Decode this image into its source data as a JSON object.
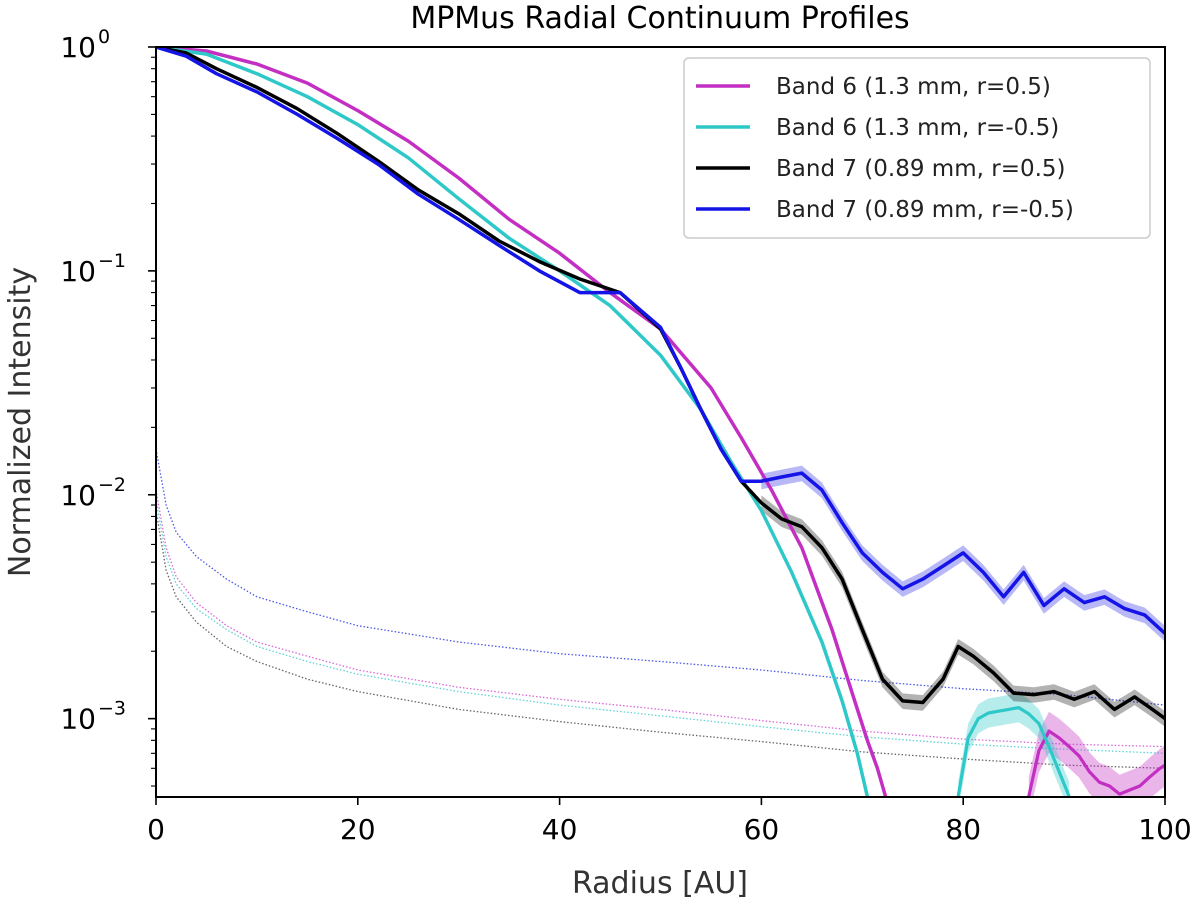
{
  "chart_data": {
    "type": "line",
    "title": "MPMus Radial Continuum Profiles",
    "xlabel": "Radius [AU]",
    "ylabel": "Normalized Intensity",
    "xlim": [
      0,
      100
    ],
    "ylim_log10": [
      -3.35,
      0
    ],
    "yscale": "log",
    "x_ticks": [
      0,
      20,
      40,
      60,
      80,
      100
    ],
    "y_ticks": [
      {
        "exp": 0,
        "base": "10",
        "sup": "0"
      },
      {
        "exp": -1,
        "base": "10",
        "sup": "−1"
      },
      {
        "exp": -2,
        "base": "10",
        "sup": "−2"
      },
      {
        "exp": -3,
        "base": "10",
        "sup": "−3"
      }
    ],
    "legend_position": "top-right",
    "series": [
      {
        "name": "Band 6 (1.3 mm, r=0.5)",
        "color": "#c22fc2",
        "x": [
          0,
          5,
          10,
          15,
          20,
          25,
          30,
          35,
          40,
          45,
          50,
          55,
          58,
          61,
          64,
          67,
          69,
          70.5,
          71.5,
          72.3
        ],
        "y": [
          1.0,
          0.96,
          0.84,
          0.69,
          0.52,
          0.38,
          0.26,
          0.17,
          0.12,
          0.08,
          0.055,
          0.03,
          0.018,
          0.0105,
          0.0058,
          0.0025,
          0.0013,
          0.0008,
          0.0006,
          0.00045
        ],
        "x2": [
          86.5,
          87.5,
          88.5,
          89.5,
          90.5,
          91.5,
          92.5,
          93.5,
          94.5,
          95.5,
          96.5,
          97.5,
          98.5,
          99.5,
          100
        ],
        "y2": [
          0.00045,
          0.00072,
          0.00088,
          0.00082,
          0.00075,
          0.00068,
          0.00058,
          0.00052,
          0.0005,
          0.00046,
          0.00048,
          0.0005,
          0.00055,
          0.0006,
          0.00062
        ]
      },
      {
        "name": "Band 6 (1.3 mm, r=-0.5)",
        "color": "#2ec8c8",
        "x": [
          0,
          5,
          10,
          15,
          20,
          25,
          30,
          35,
          40,
          45,
          50,
          54,
          57,
          60,
          63,
          66,
          68,
          69.5,
          70.5
        ],
        "y": [
          1.0,
          0.93,
          0.76,
          0.6,
          0.45,
          0.32,
          0.21,
          0.14,
          0.1,
          0.07,
          0.042,
          0.024,
          0.014,
          0.0085,
          0.0045,
          0.0022,
          0.0012,
          0.0007,
          0.00045
        ],
        "x2": [
          79.5,
          80.5,
          81.5,
          82.5,
          83.5,
          84.5,
          85.5,
          86.5,
          87.5,
          88.5,
          89.5,
          90.5
        ],
        "y2": [
          0.00045,
          0.00082,
          0.001,
          0.00106,
          0.00108,
          0.0011,
          0.00112,
          0.00105,
          0.00095,
          0.00075,
          0.00058,
          0.00045
        ]
      },
      {
        "name": "Band 7 (0.89 mm, r=0.5)",
        "color": "#000000",
        "x": [
          0,
          3,
          6,
          10,
          14,
          18,
          22,
          26,
          30,
          34,
          38,
          42,
          46,
          50,
          52,
          54,
          56,
          58,
          60,
          62,
          64,
          66,
          68,
          70,
          72,
          74,
          76,
          78,
          79.5,
          81,
          83,
          85,
          87,
          89,
          91,
          93,
          95,
          97,
          99,
          100
        ],
        "y": [
          1.0,
          0.94,
          0.8,
          0.66,
          0.53,
          0.41,
          0.31,
          0.23,
          0.18,
          0.136,
          0.11,
          0.092,
          0.08,
          0.055,
          0.037,
          0.024,
          0.016,
          0.0115,
          0.0092,
          0.0078,
          0.0072,
          0.0058,
          0.0042,
          0.0025,
          0.0015,
          0.0012,
          0.00118,
          0.0015,
          0.0021,
          0.0019,
          0.0016,
          0.0013,
          0.00128,
          0.00132,
          0.00122,
          0.00132,
          0.0011,
          0.00125,
          0.00108,
          0.001
        ]
      },
      {
        "name": "Band 7 (0.89 mm, r=-0.5)",
        "color": "#1414e6",
        "x": [
          0,
          3,
          6,
          10,
          14,
          18,
          22,
          26,
          30,
          34,
          38,
          42,
          46,
          50,
          52,
          54,
          56,
          58,
          60,
          62,
          64,
          66,
          68,
          70,
          72,
          74,
          76,
          78,
          80,
          82,
          84,
          86,
          88,
          90,
          92,
          94,
          96,
          98,
          100
        ],
        "y": [
          1.0,
          0.91,
          0.76,
          0.63,
          0.5,
          0.39,
          0.3,
          0.22,
          0.17,
          0.13,
          0.1,
          0.08,
          0.08,
          0.056,
          0.037,
          0.024,
          0.016,
          0.0115,
          0.0115,
          0.012,
          0.0125,
          0.0105,
          0.0075,
          0.0055,
          0.0045,
          0.0038,
          0.0042,
          0.0048,
          0.0055,
          0.0045,
          0.0035,
          0.0045,
          0.0032,
          0.0038,
          0.0033,
          0.0035,
          0.0031,
          0.0029,
          0.0024
        ]
      }
    ],
    "noise_series": [
      {
        "name": "band7-r-0.5-noise",
        "color": "#4a5ae8",
        "x": [
          0,
          1,
          2,
          4,
          7,
          10,
          15,
          20,
          30,
          40,
          50,
          60,
          70,
          80,
          90,
          100
        ],
        "y": [
          0.016,
          0.009,
          0.0068,
          0.0053,
          0.0042,
          0.0035,
          0.003,
          0.0026,
          0.0022,
          0.00195,
          0.0018,
          0.00165,
          0.00148,
          0.00136,
          0.00128,
          0.00115
        ]
      },
      {
        "name": "band6-r0.5-noise",
        "color": "#d86ad8",
        "x": [
          0,
          1,
          2,
          4,
          7,
          10,
          15,
          20,
          30,
          40,
          50,
          60,
          70,
          80,
          90,
          100
        ],
        "y": [
          0.0105,
          0.0058,
          0.0043,
          0.0033,
          0.0026,
          0.0022,
          0.0019,
          0.00165,
          0.00138,
          0.00122,
          0.0011,
          0.00098,
          0.00088,
          0.00081,
          0.00077,
          0.00075
        ]
      },
      {
        "name": "band6-r-0.5-noise",
        "color": "#5fd4d4",
        "x": [
          0,
          1,
          2,
          4,
          7,
          10,
          15,
          20,
          30,
          40,
          50,
          60,
          70,
          80,
          90,
          100
        ],
        "y": [
          0.0095,
          0.0053,
          0.004,
          0.0031,
          0.0025,
          0.0021,
          0.0018,
          0.00158,
          0.00132,
          0.00115,
          0.00103,
          0.00092,
          0.00083,
          0.00077,
          0.00073,
          0.0007
        ]
      },
      {
        "name": "band7-r0.5-noise",
        "color": "#666666",
        "x": [
          0,
          1,
          2,
          4,
          7,
          10,
          15,
          20,
          30,
          40,
          50,
          60,
          70,
          80,
          90,
          100
        ],
        "y": [
          0.0085,
          0.0046,
          0.0035,
          0.0027,
          0.0021,
          0.0018,
          0.0015,
          0.00132,
          0.0011,
          0.00097,
          0.00087,
          0.00079,
          0.00071,
          0.00066,
          0.00062,
          0.0006
        ]
      }
    ]
  }
}
